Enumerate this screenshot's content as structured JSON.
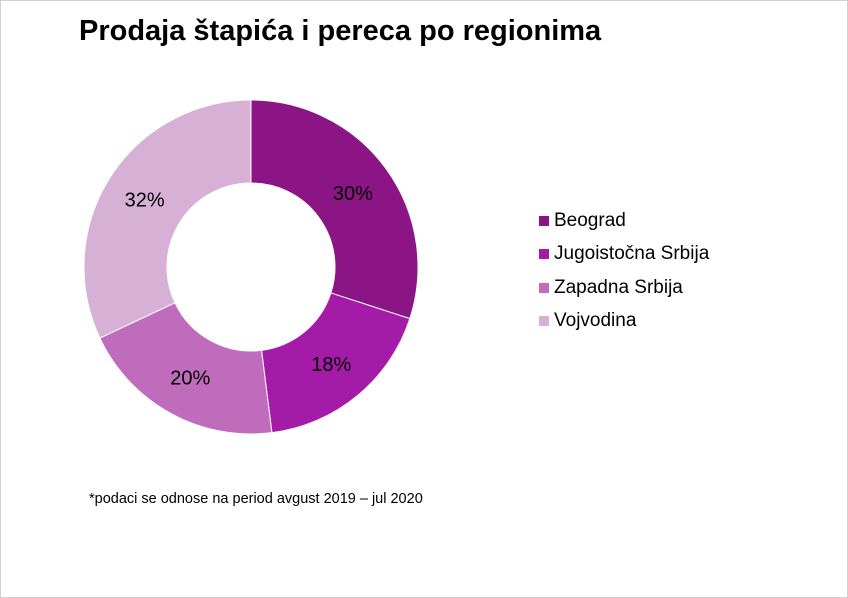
{
  "chart_data": {
    "type": "pie",
    "title": "Prodaja štapića i pereca po regionima",
    "categories": [
      "Beograd",
      "Jugoistočna Srbija",
      "Zapadna Srbija",
      "Vojvodina"
    ],
    "values": [
      30,
      18,
      20,
      32
    ],
    "data_labels": [
      "30%",
      "18%",
      "20%",
      "32%"
    ],
    "colors": [
      "#8b1585",
      "#a31ba6",
      "#c06cbd",
      "#d7b0d6"
    ],
    "legend_position": "right",
    "footnote": "*podaci se odnose na period avgust 2019 – jul 2020"
  }
}
